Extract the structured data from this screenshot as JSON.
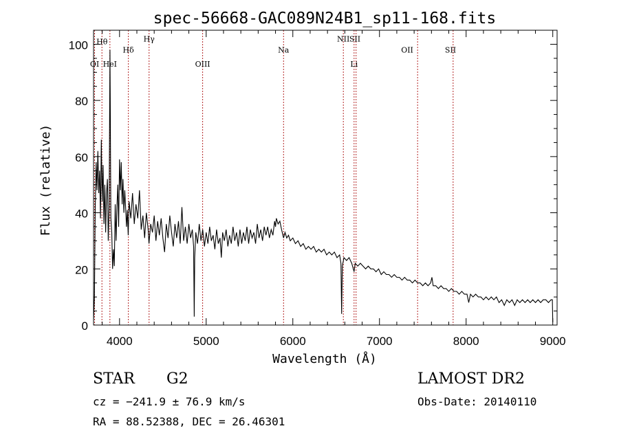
{
  "chart_data": {
    "type": "line",
    "title": "spec-56668-GAC089N24B1_sp11-168.fits",
    "xlabel": "Wavelength (Å)",
    "ylabel": "Flux (relative)",
    "xlim": [
      3700,
      9050
    ],
    "ylim": [
      0,
      105
    ],
    "x_ticks": [
      4000,
      5000,
      6000,
      7000,
      8000,
      9000
    ],
    "y_ticks": [
      0,
      20,
      40,
      60,
      80,
      100
    ],
    "grid": false,
    "series": [
      {
        "color": "#000000",
        "points": [
          [
            3700,
            2
          ],
          [
            3710,
            10
          ],
          [
            3720,
            42
          ],
          [
            3730,
            58
          ],
          [
            3740,
            48
          ],
          [
            3750,
            62
          ],
          [
            3760,
            47
          ],
          [
            3770,
            55
          ],
          [
            3780,
            38
          ],
          [
            3790,
            66
          ],
          [
            3800,
            44
          ],
          [
            3810,
            57
          ],
          [
            3820,
            36
          ],
          [
            3830,
            50
          ],
          [
            3840,
            33
          ],
          [
            3850,
            47
          ],
          [
            3860,
            52
          ],
          [
            3870,
            30
          ],
          [
            3880,
            42
          ],
          [
            3890,
            98
          ],
          [
            3900,
            38
          ],
          [
            3910,
            33
          ],
          [
            3920,
            20
          ],
          [
            3930,
            27
          ],
          [
            3940,
            21
          ],
          [
            3950,
            43
          ],
          [
            3960,
            30
          ],
          [
            3970,
            42
          ],
          [
            3980,
            50
          ],
          [
            3990,
            35
          ],
          [
            4000,
            59
          ],
          [
            4010,
            48
          ],
          [
            4020,
            58
          ],
          [
            4030,
            43
          ],
          [
            4040,
            52
          ],
          [
            4050,
            40
          ],
          [
            4060,
            48
          ],
          [
            4070,
            42
          ],
          [
            4080,
            35
          ],
          [
            4090,
            41
          ],
          [
            4100,
            32
          ],
          [
            4110,
            44
          ],
          [
            4130,
            38
          ],
          [
            4150,
            47
          ],
          [
            4170,
            36
          ],
          [
            4190,
            43
          ],
          [
            4210,
            38
          ],
          [
            4230,
            48
          ],
          [
            4250,
            34
          ],
          [
            4270,
            39
          ],
          [
            4290,
            31
          ],
          [
            4310,
            40
          ],
          [
            4330,
            34
          ],
          [
            4340,
            29
          ],
          [
            4360,
            36
          ],
          [
            4380,
            33
          ],
          [
            4400,
            39
          ],
          [
            4420,
            30
          ],
          [
            4440,
            37
          ],
          [
            4460,
            32
          ],
          [
            4480,
            38
          ],
          [
            4500,
            31
          ],
          [
            4520,
            26
          ],
          [
            4540,
            36
          ],
          [
            4560,
            31
          ],
          [
            4580,
            39
          ],
          [
            4600,
            33
          ],
          [
            4620,
            28
          ],
          [
            4640,
            36
          ],
          [
            4660,
            31
          ],
          [
            4680,
            37
          ],
          [
            4700,
            29
          ],
          [
            4720,
            42
          ],
          [
            4740,
            30
          ],
          [
            4760,
            35
          ],
          [
            4780,
            29
          ],
          [
            4800,
            36
          ],
          [
            4820,
            31
          ],
          [
            4840,
            34
          ],
          [
            4855,
            28
          ],
          [
            4862,
            3
          ],
          [
            4868,
            24
          ],
          [
            4880,
            33
          ],
          [
            4900,
            29
          ],
          [
            4920,
            36
          ],
          [
            4940,
            30
          ],
          [
            4960,
            34
          ],
          [
            4980,
            28
          ],
          [
            5000,
            33
          ],
          [
            5020,
            29
          ],
          [
            5040,
            35
          ],
          [
            5060,
            30
          ],
          [
            5080,
            32
          ],
          [
            5100,
            27
          ],
          [
            5120,
            34
          ],
          [
            5140,
            29
          ],
          [
            5160,
            31
          ],
          [
            5175,
            24
          ],
          [
            5190,
            33
          ],
          [
            5210,
            30
          ],
          [
            5230,
            34
          ],
          [
            5250,
            28
          ],
          [
            5270,
            32
          ],
          [
            5290,
            29
          ],
          [
            5310,
            35
          ],
          [
            5330,
            30
          ],
          [
            5350,
            33
          ],
          [
            5370,
            28
          ],
          [
            5390,
            34
          ],
          [
            5410,
            29
          ],
          [
            5430,
            33
          ],
          [
            5450,
            30
          ],
          [
            5470,
            35
          ],
          [
            5490,
            29
          ],
          [
            5510,
            34
          ],
          [
            5530,
            31
          ],
          [
            5550,
            33
          ],
          [
            5570,
            29
          ],
          [
            5590,
            36
          ],
          [
            5610,
            31
          ],
          [
            5630,
            34
          ],
          [
            5650,
            30
          ],
          [
            5670,
            35
          ],
          [
            5690,
            32
          ],
          [
            5710,
            35
          ],
          [
            5730,
            31
          ],
          [
            5750,
            34
          ],
          [
            5770,
            32
          ],
          [
            5790,
            37
          ],
          [
            5800,
            35
          ],
          [
            5810,
            38
          ],
          [
            5830,
            36
          ],
          [
            5850,
            37
          ],
          [
            5870,
            34
          ],
          [
            5893,
            31
          ],
          [
            5910,
            33
          ],
          [
            5930,
            31
          ],
          [
            5950,
            32
          ],
          [
            5970,
            30
          ],
          [
            6000,
            31
          ],
          [
            6030,
            29
          ],
          [
            6060,
            30
          ],
          [
            6090,
            28
          ],
          [
            6120,
            29
          ],
          [
            6150,
            27
          ],
          [
            6180,
            28
          ],
          [
            6210,
            27
          ],
          [
            6240,
            28
          ],
          [
            6270,
            26
          ],
          [
            6300,
            27
          ],
          [
            6330,
            26
          ],
          [
            6360,
            27
          ],
          [
            6390,
            25
          ],
          [
            6420,
            26
          ],
          [
            6450,
            25
          ],
          [
            6480,
            26
          ],
          [
            6510,
            24
          ],
          [
            6540,
            25
          ],
          [
            6555,
            22
          ],
          [
            6563,
            4
          ],
          [
            6571,
            21
          ],
          [
            6590,
            24
          ],
          [
            6620,
            23
          ],
          [
            6650,
            24
          ],
          [
            6680,
            22
          ],
          [
            6707,
            19
          ],
          [
            6720,
            22
          ],
          [
            6750,
            21
          ],
          [
            6780,
            22
          ],
          [
            6810,
            21
          ],
          [
            6840,
            20
          ],
          [
            6870,
            21
          ],
          [
            6900,
            20
          ],
          [
            6930,
            20
          ],
          [
            6960,
            19
          ],
          [
            6990,
            20
          ],
          [
            7020,
            18
          ],
          [
            7050,
            19
          ],
          [
            7080,
            18
          ],
          [
            7110,
            18
          ],
          [
            7140,
            17
          ],
          [
            7170,
            18
          ],
          [
            7200,
            17
          ],
          [
            7230,
            17
          ],
          [
            7260,
            16
          ],
          [
            7290,
            17
          ],
          [
            7320,
            16
          ],
          [
            7350,
            16
          ],
          [
            7380,
            15
          ],
          [
            7410,
            16
          ],
          [
            7440,
            15
          ],
          [
            7470,
            15
          ],
          [
            7500,
            14
          ],
          [
            7530,
            15
          ],
          [
            7560,
            14
          ],
          [
            7590,
            15
          ],
          [
            7605,
            17
          ],
          [
            7620,
            14
          ],
          [
            7650,
            14
          ],
          [
            7680,
            13
          ],
          [
            7710,
            14
          ],
          [
            7740,
            13
          ],
          [
            7770,
            13
          ],
          [
            7800,
            12
          ],
          [
            7830,
            13
          ],
          [
            7860,
            12
          ],
          [
            7890,
            12
          ],
          [
            7920,
            11
          ],
          [
            7950,
            12
          ],
          [
            7980,
            11
          ],
          [
            8010,
            11
          ],
          [
            8030,
            8
          ],
          [
            8050,
            11
          ],
          [
            8080,
            10
          ],
          [
            8110,
            11
          ],
          [
            8140,
            10
          ],
          [
            8170,
            10
          ],
          [
            8200,
            9
          ],
          [
            8230,
            10
          ],
          [
            8260,
            9
          ],
          [
            8290,
            10
          ],
          [
            8320,
            9
          ],
          [
            8350,
            10
          ],
          [
            8380,
            8
          ],
          [
            8410,
            9
          ],
          [
            8440,
            7
          ],
          [
            8470,
            9
          ],
          [
            8500,
            8
          ],
          [
            8530,
            9
          ],
          [
            8560,
            7
          ],
          [
            8590,
            9
          ],
          [
            8620,
            8
          ],
          [
            8650,
            9
          ],
          [
            8680,
            8
          ],
          [
            8710,
            9
          ],
          [
            8740,
            8
          ],
          [
            8770,
            9
          ],
          [
            8800,
            8
          ],
          [
            8830,
            9
          ],
          [
            8860,
            8
          ],
          [
            8890,
            9
          ],
          [
            8920,
            9
          ],
          [
            8950,
            8
          ],
          [
            8980,
            9
          ],
          [
            8995,
            9
          ],
          [
            9000,
            1
          ]
        ]
      }
    ],
    "annotations": [
      {
        "label": "Hθ",
        "x": 3797,
        "y": 100
      },
      {
        "label": "OI",
        "x": 3712,
        "y": 92
      },
      {
        "label": "HeI",
        "x": 3889,
        "y": 92
      },
      {
        "label": "Hδ",
        "x": 4102,
        "y": 97
      },
      {
        "label": "Hγ",
        "x": 4341,
        "y": 101
      },
      {
        "label": "OIII",
        "x": 4959,
        "y": 92
      },
      {
        "label": "Na",
        "x": 5893,
        "y": 97
      },
      {
        "label": "NII",
        "x": 6583,
        "y": 101
      },
      {
        "label": "SII",
        "x": 6716,
        "y": 101
      },
      {
        "label": "Li",
        "x": 6707,
        "y": 92
      },
      {
        "label": "OII",
        "x": 7320,
        "y": 97
      },
      {
        "label": "SII",
        "x": 7820,
        "y": 97
      }
    ],
    "line_marks": [
      3712,
      3797,
      3889,
      4102,
      4341,
      4959,
      5893,
      6583,
      6707,
      6730,
      7440,
      7850
    ],
    "line_mark_color": "#b22222"
  },
  "info": {
    "object_class": "STAR",
    "subclass": "G2",
    "survey": "LAMOST DR2",
    "cz": "cz = −241.9 ± 76.9 km/s",
    "obs_date": "Obs-Date: 20140110",
    "coords": "RA =  88.52388, DEC =  26.46301"
  }
}
